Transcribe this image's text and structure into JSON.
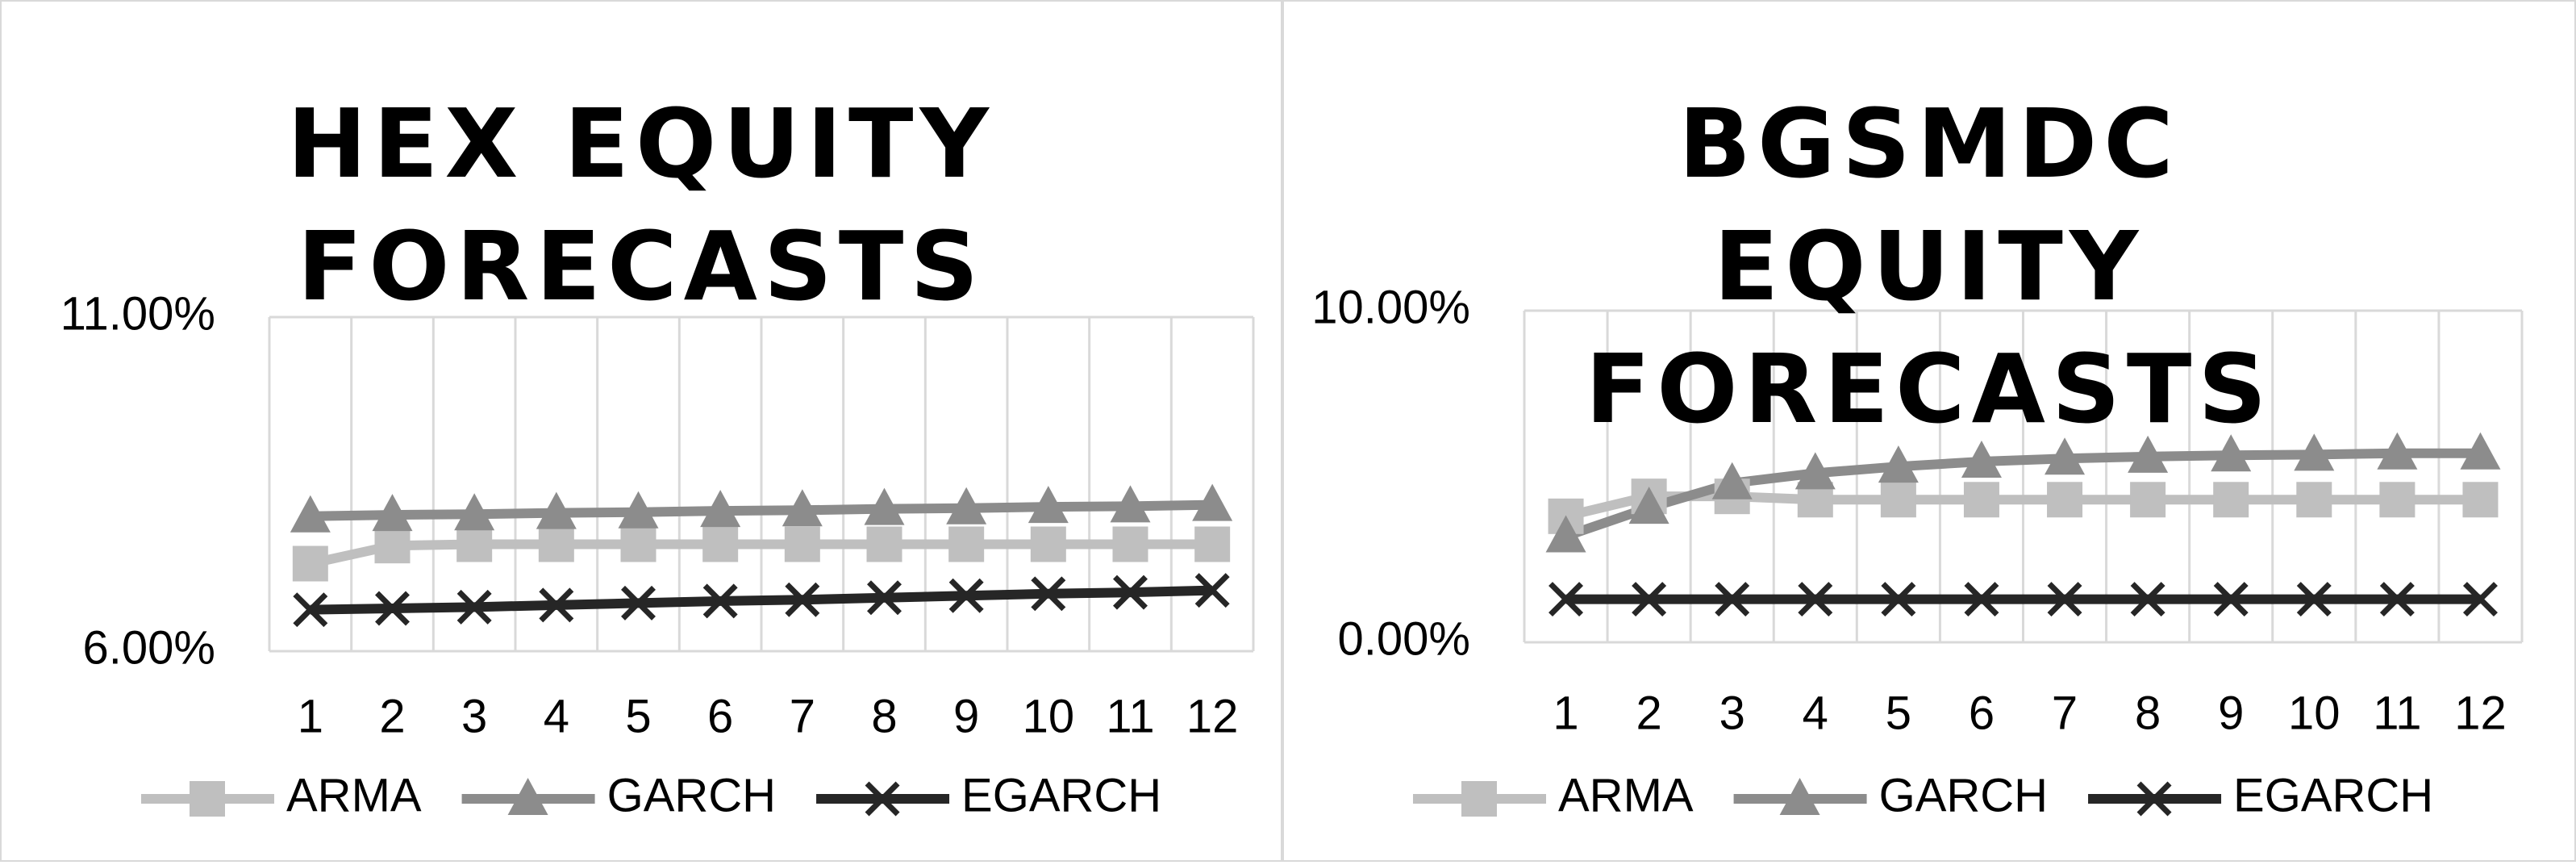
{
  "chart_data": [
    {
      "type": "line",
      "title": "HEX EQUITY FORECASTS",
      "categories": [
        "1",
        "2",
        "3",
        "4",
        "5",
        "6",
        "7",
        "8",
        "9",
        "10",
        "11",
        "12"
      ],
      "ylim": [
        6,
        11
      ],
      "yticks": [
        {
          "value": 6,
          "label": "6.00%"
        },
        {
          "value": 11,
          "label": "11.00%"
        }
      ],
      "grid": "x",
      "legend": "bottom",
      "series": [
        {
          "name": "ARMA",
          "color": "#bfbfbf",
          "marker": "square",
          "values": [
            7.31,
            7.58,
            7.6,
            7.6,
            7.6,
            7.6,
            7.6,
            7.6,
            7.6,
            7.6,
            7.6,
            7.6
          ]
        },
        {
          "name": "GARCH",
          "color": "#8c8c8c",
          "marker": "triangle",
          "values": [
            8.02,
            8.04,
            8.05,
            8.07,
            8.08,
            8.1,
            8.11,
            8.13,
            8.14,
            8.16,
            8.17,
            8.19
          ]
        },
        {
          "name": "EGARCH",
          "color": "#262626",
          "marker": "x",
          "values": [
            6.62,
            6.64,
            6.66,
            6.69,
            6.72,
            6.75,
            6.77,
            6.8,
            6.83,
            6.86,
            6.88,
            6.91
          ]
        }
      ]
    },
    {
      "type": "line",
      "title": "BGSMDC EQUITY FORECASTS",
      "categories": [
        "1",
        "2",
        "3",
        "4",
        "5",
        "6",
        "7",
        "8",
        "9",
        "10",
        "11",
        "12"
      ],
      "ylim": [
        0,
        10
      ],
      "yticks": [
        {
          "value": 0,
          "label": "0.00%"
        },
        {
          "value": 10,
          "label": "10.00%"
        }
      ],
      "grid": "x",
      "legend": "bottom",
      "series": [
        {
          "name": "ARMA",
          "color": "#bfbfbf",
          "marker": "square",
          "values": [
            3.8,
            4.4,
            4.4,
            4.3,
            4.3,
            4.3,
            4.3,
            4.3,
            4.3,
            4.3,
            4.3,
            4.3
          ]
        },
        {
          "name": "GARCH",
          "color": "#8c8c8c",
          "marker": "triangle",
          "values": [
            3.2,
            4.06,
            4.8,
            5.1,
            5.3,
            5.45,
            5.54,
            5.6,
            5.64,
            5.66,
            5.7,
            5.7
          ]
        },
        {
          "name": "EGARCH",
          "color": "#262626",
          "marker": "x",
          "values": [
            1.3,
            1.3,
            1.3,
            1.3,
            1.3,
            1.3,
            1.3,
            1.3,
            1.3,
            1.3,
            1.3,
            1.3
          ]
        }
      ]
    }
  ]
}
